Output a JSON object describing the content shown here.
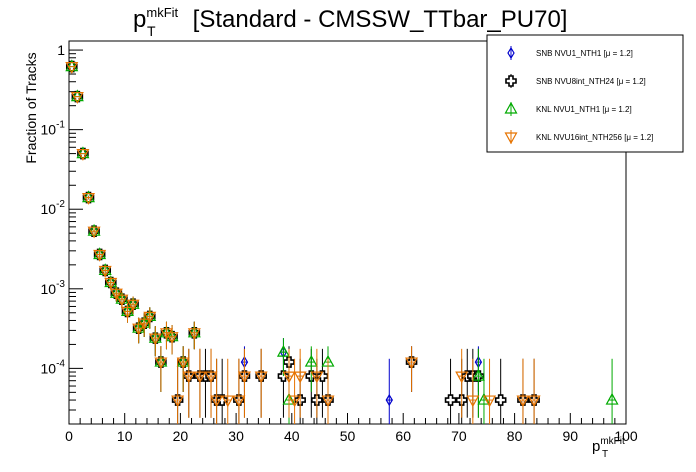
{
  "chart_data": {
    "type": "scatter",
    "title": {
      "main": "p",
      "sup": "mkFit",
      "sub": "T",
      "rest": " [Standard - CMSSW_TTbar_PU70]"
    },
    "ylabel": "Fraction of Tracks",
    "xlabel": {
      "main": "p",
      "sup": "mkFit",
      "sub": "T"
    },
    "xlim": [
      0,
      100
    ],
    "ylim": [
      2e-05,
      1.3
    ],
    "yscale": "log",
    "x_ticks": [
      "0",
      "10",
      "20",
      "30",
      "40",
      "50",
      "60",
      "70",
      "80",
      "90",
      "100"
    ],
    "y_ticks": [
      {
        "base": "1",
        "exp": ""
      },
      {
        "base": "10",
        "exp": "-1"
      },
      {
        "base": "10",
        "exp": "-2"
      },
      {
        "base": "10",
        "exp": "-3"
      },
      {
        "base": "10",
        "exp": "-4"
      }
    ],
    "series": [
      {
        "name": "SNB NVU1_NTH1 [μ = 1.2]",
        "marker": "diamond",
        "color": "#0000cc",
        "points": [
          [
            0.5,
            0.62
          ],
          [
            1.5,
            0.26
          ],
          [
            2.5,
            0.05
          ],
          [
            3.5,
            0.014
          ],
          [
            4.5,
            0.0053
          ],
          [
            5.5,
            0.0027
          ],
          [
            6.5,
            0.0017
          ],
          [
            7.5,
            0.0012
          ],
          [
            8.5,
            0.00088
          ],
          [
            9.5,
            0.00074
          ],
          [
            10.5,
            0.00052
          ],
          [
            11.5,
            0.00064
          ],
          [
            12.5,
            0.00032
          ],
          [
            13.5,
            0.00037
          ],
          [
            14.5,
            0.00045
          ],
          [
            15.5,
            0.00024
          ],
          [
            16.5,
            0.00012
          ],
          [
            17.5,
            0.00028
          ],
          [
            18.5,
            0.00025
          ],
          [
            20.5,
            0.00012
          ],
          [
            22.5,
            0.00028
          ],
          [
            31.5,
            0.00012
          ],
          [
            38.5,
            0.00016
          ],
          [
            39.5,
            0.00012
          ],
          [
            57.5,
            4e-05
          ],
          [
            61.5,
            0.00012
          ],
          [
            73.5,
            0.00012
          ]
        ]
      },
      {
        "name": "SNB NVU8int_NTH24 [μ = 1.2]",
        "marker": "cross",
        "color": "#000000",
        "points": [
          [
            0.5,
            0.62
          ],
          [
            1.5,
            0.26
          ],
          [
            2.5,
            0.05
          ],
          [
            3.5,
            0.014
          ],
          [
            4.5,
            0.0053
          ],
          [
            5.5,
            0.0027
          ],
          [
            6.5,
            0.0017
          ],
          [
            7.5,
            0.0012
          ],
          [
            8.5,
            0.00088
          ],
          [
            9.5,
            0.00074
          ],
          [
            10.5,
            0.00052
          ],
          [
            11.5,
            0.00064
          ],
          [
            12.5,
            0.00032
          ],
          [
            13.5,
            0.00037
          ],
          [
            14.5,
            0.00045
          ],
          [
            15.5,
            0.00024
          ],
          [
            16.5,
            0.00012
          ],
          [
            17.5,
            0.00028
          ],
          [
            18.5,
            0.00025
          ],
          [
            19.5,
            4e-05
          ],
          [
            20.5,
            0.00012
          ],
          [
            21.5,
            8e-05
          ],
          [
            22.5,
            0.00028
          ],
          [
            23.5,
            8e-05
          ],
          [
            24.5,
            8e-05
          ],
          [
            25.5,
            8e-05
          ],
          [
            26.5,
            4e-05
          ],
          [
            27.5,
            4e-05
          ],
          [
            30.5,
            4e-05
          ],
          [
            31.5,
            8e-05
          ],
          [
            34.5,
            8e-05
          ],
          [
            38.5,
            8e-05
          ],
          [
            39.5,
            0.00012
          ],
          [
            41.5,
            4e-05
          ],
          [
            43.5,
            8e-05
          ],
          [
            44.5,
            4e-05
          ],
          [
            45.5,
            8e-05
          ],
          [
            46.5,
            4e-05
          ],
          [
            61.5,
            0.00012
          ],
          [
            68.5,
            4e-05
          ],
          [
            70.5,
            4e-05
          ],
          [
            71.5,
            8e-05
          ],
          [
            72.5,
            8e-05
          ],
          [
            73.5,
            8e-05
          ],
          [
            77.5,
            4e-05
          ],
          [
            81.5,
            4e-05
          ],
          [
            83.5,
            4e-05
          ]
        ]
      },
      {
        "name": "KNL NVU1_NTH1 [μ = 1.2]",
        "marker": "triangle-up",
        "color": "#00aa00",
        "points": [
          [
            0.5,
            0.62
          ],
          [
            1.5,
            0.26
          ],
          [
            2.5,
            0.05
          ],
          [
            3.5,
            0.014
          ],
          [
            4.5,
            0.0053
          ],
          [
            5.5,
            0.0027
          ],
          [
            6.5,
            0.0017
          ],
          [
            7.5,
            0.0012
          ],
          [
            8.5,
            0.00088
          ],
          [
            9.5,
            0.00074
          ],
          [
            10.5,
            0.00052
          ],
          [
            11.5,
            0.00064
          ],
          [
            12.5,
            0.00032
          ],
          [
            13.5,
            0.00037
          ],
          [
            14.5,
            0.00045
          ],
          [
            15.5,
            0.00024
          ],
          [
            16.5,
            0.00012
          ],
          [
            17.5,
            0.00028
          ],
          [
            18.5,
            0.00025
          ],
          [
            20.5,
            0.00012
          ],
          [
            22.5,
            0.00028
          ],
          [
            38.5,
            0.00016
          ],
          [
            39.5,
            4e-05
          ],
          [
            43.5,
            0.00012
          ],
          [
            46.5,
            0.00012
          ],
          [
            73.5,
            8e-05
          ],
          [
            74.5,
            4e-05
          ],
          [
            97.5,
            4e-05
          ]
        ]
      },
      {
        "name": "KNL NVU16int_NTH256 [μ = 1.2]",
        "marker": "triangle-down",
        "color": "#e67300",
        "points": [
          [
            0.5,
            0.62
          ],
          [
            1.5,
            0.26
          ],
          [
            2.5,
            0.05
          ],
          [
            3.5,
            0.014
          ],
          [
            4.5,
            0.0053
          ],
          [
            5.5,
            0.0027
          ],
          [
            6.5,
            0.0017
          ],
          [
            7.5,
            0.0012
          ],
          [
            8.5,
            0.00088
          ],
          [
            9.5,
            0.00074
          ],
          [
            10.5,
            0.00052
          ],
          [
            11.5,
            0.00064
          ],
          [
            12.5,
            0.00032
          ],
          [
            13.5,
            0.00037
          ],
          [
            14.5,
            0.00045
          ],
          [
            15.5,
            0.00024
          ],
          [
            16.5,
            0.00012
          ],
          [
            17.5,
            0.00028
          ],
          [
            18.5,
            0.00025
          ],
          [
            19.5,
            4e-05
          ],
          [
            20.5,
            0.00012
          ],
          [
            21.5,
            8e-05
          ],
          [
            22.5,
            0.00028
          ],
          [
            23.5,
            8e-05
          ],
          [
            25.5,
            8e-05
          ],
          [
            26.5,
            4e-05
          ],
          [
            28.5,
            4e-05
          ],
          [
            30.5,
            4e-05
          ],
          [
            31.5,
            8e-05
          ],
          [
            34.5,
            8e-05
          ],
          [
            39.5,
            8e-05
          ],
          [
            40.5,
            4e-05
          ],
          [
            41.5,
            8e-05
          ],
          [
            44.5,
            8e-05
          ],
          [
            46.5,
            4e-05
          ],
          [
            61.5,
            0.00012
          ],
          [
            70.5,
            8e-05
          ],
          [
            72.5,
            4e-05
          ],
          [
            75.5,
            4e-05
          ],
          [
            81.5,
            4e-05
          ],
          [
            83.5,
            4e-05
          ]
        ]
      }
    ],
    "legend": {
      "position": "top-right"
    }
  }
}
